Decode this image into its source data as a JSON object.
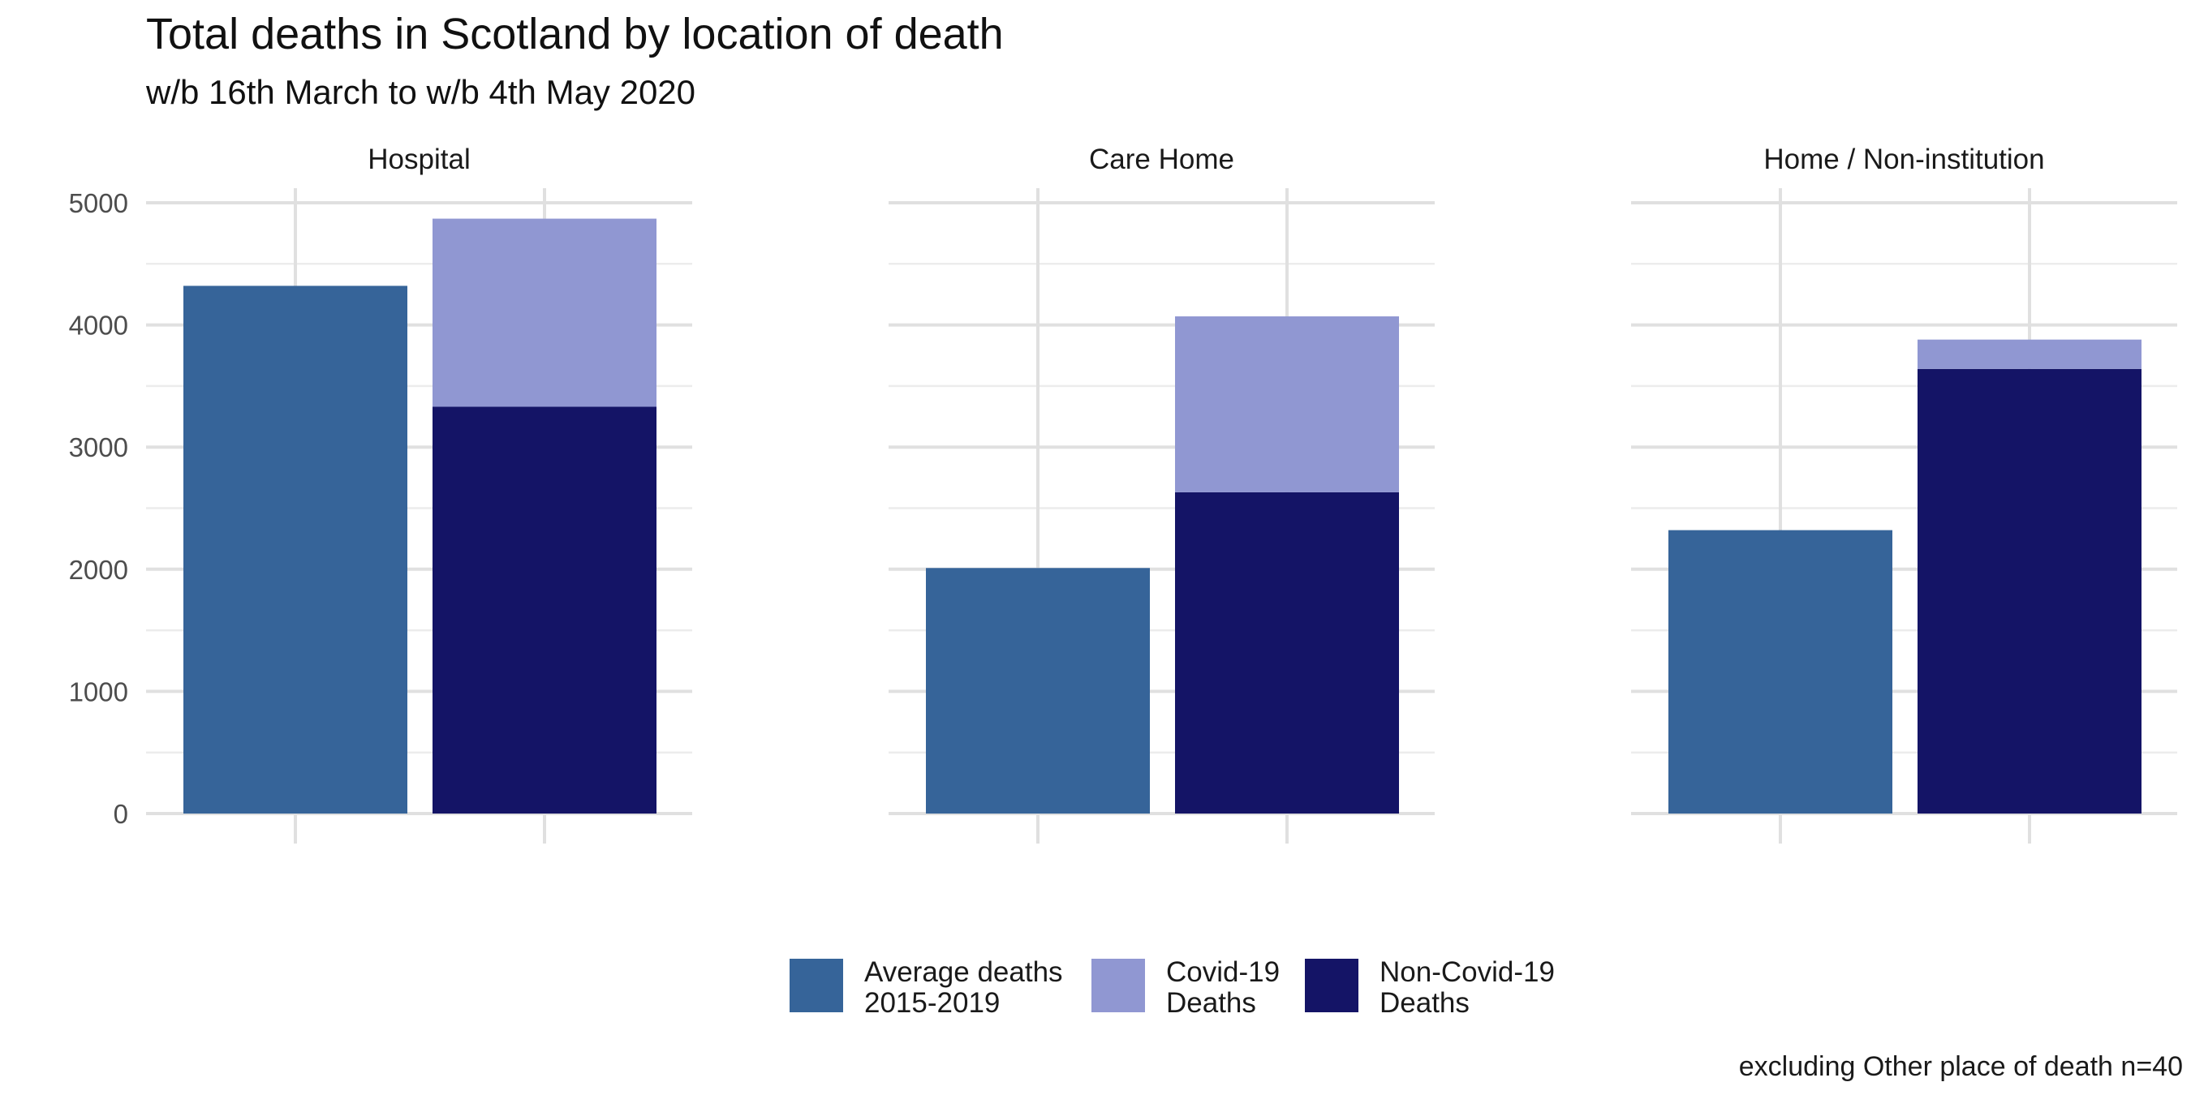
{
  "chart_data": {
    "type": "bar",
    "title": "Total deaths in Scotland by location of death",
    "subtitle": "w/b 16th March to w/b 4th May 2020",
    "caption": "excluding Other place of death n=40",
    "ylim": [
      0,
      5000
    ],
    "yticks": [
      "0",
      "1000",
      "2000",
      "3000",
      "4000",
      "5000"
    ],
    "grid": true,
    "legend_position": "bottom",
    "legend": [
      {
        "key": "average",
        "lines": [
          "Average deaths",
          "2015-2019"
        ],
        "color": "#366499"
      },
      {
        "key": "covid",
        "lines": [
          "Covid-19",
          "Deaths"
        ],
        "color": "#9097d2"
      },
      {
        "key": "noncovid",
        "lines": [
          "Non-Covid-19",
          "Deaths"
        ],
        "color": "#141466"
      }
    ],
    "panels": [
      {
        "name": "Hospital",
        "average": 4320,
        "noncovid": 3330,
        "covid": 1540
      },
      {
        "name": "Care Home",
        "average": 2010,
        "noncovid": 2630,
        "covid": 1440
      },
      {
        "name": "Home / Non-institution",
        "average": 2320,
        "noncovid": 3640,
        "covid": 240
      }
    ]
  }
}
